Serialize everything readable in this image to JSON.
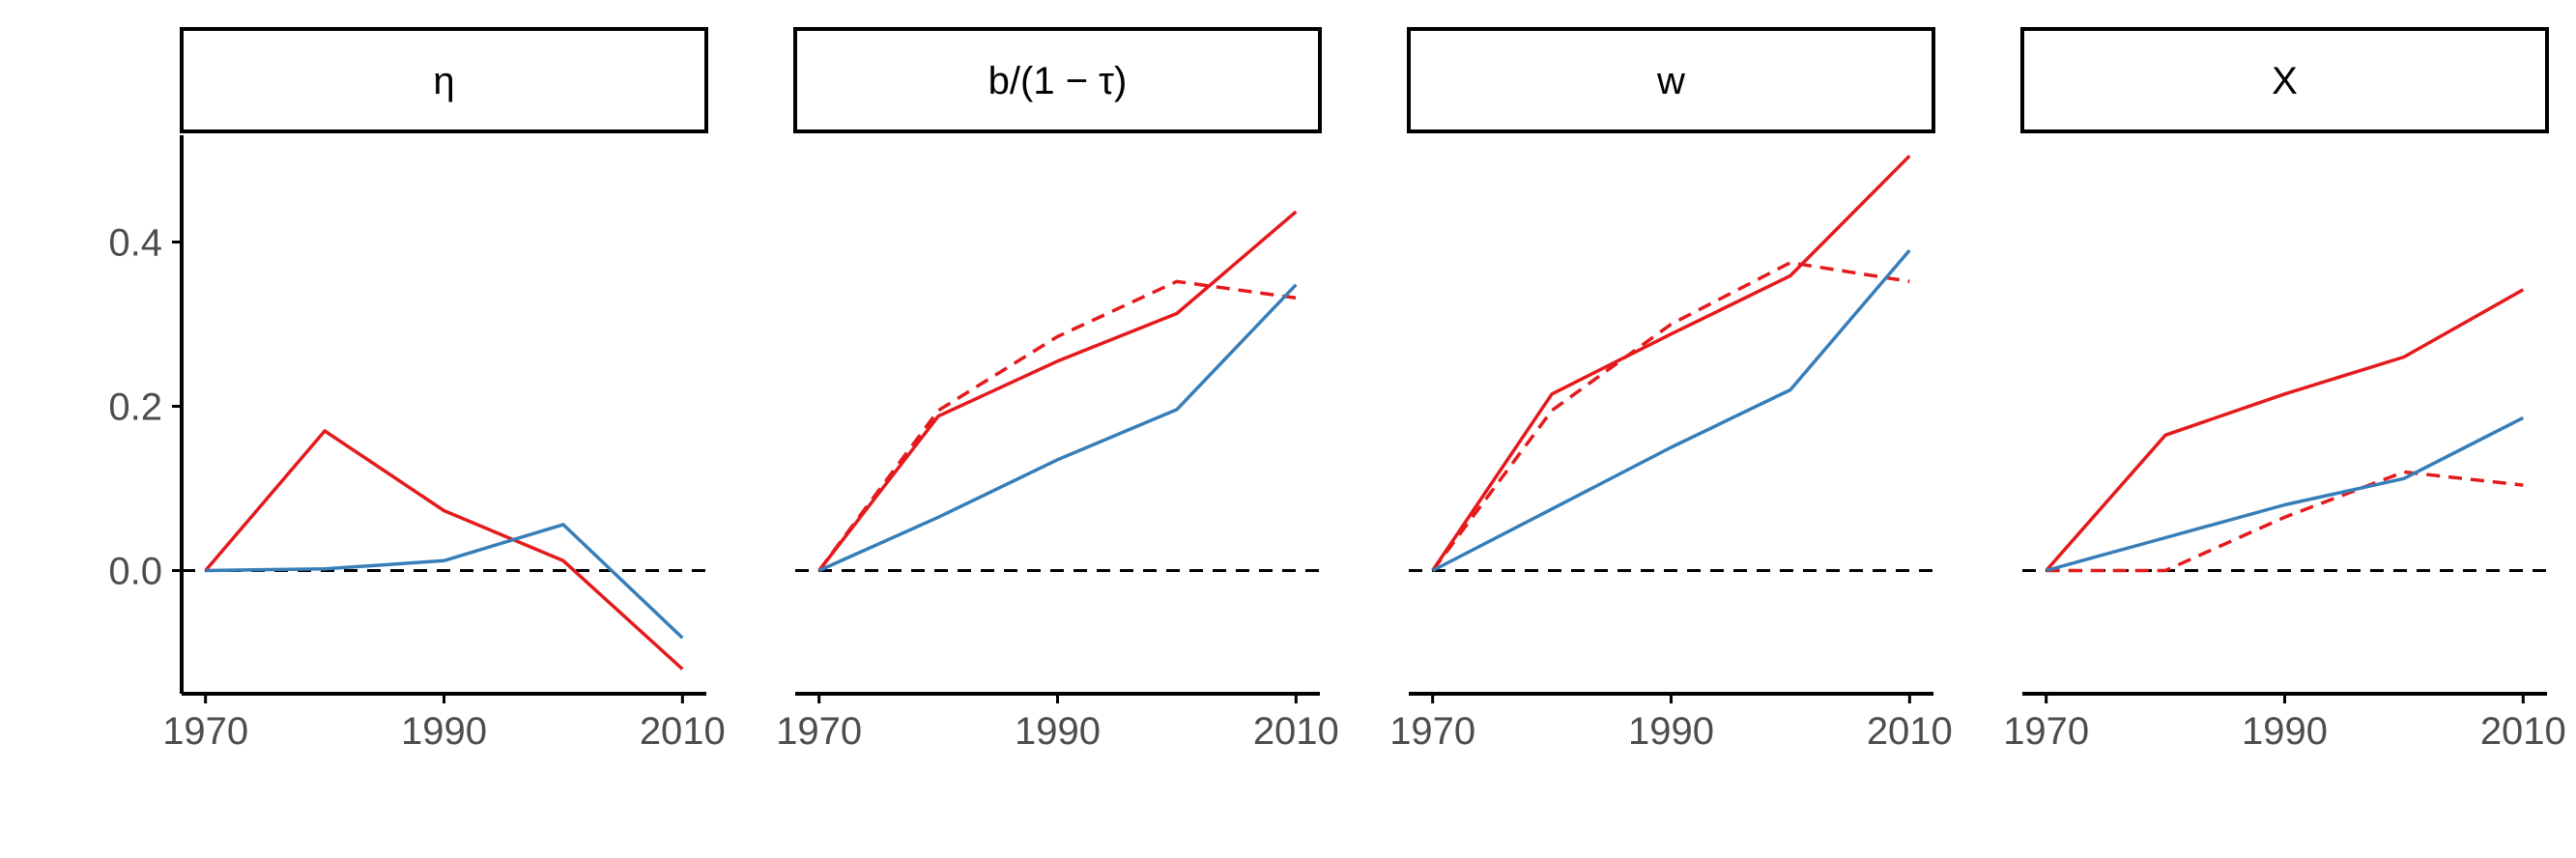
{
  "colors": {
    "red": "#e41a1c",
    "blue": "#377eb8",
    "zero_line": "#000000",
    "axis": "#000000",
    "tick_text": "#4d4d4d"
  },
  "chart_data": {
    "type": "line",
    "layout": "faceted, 4 panels in one row",
    "shared_y_axis": {
      "ylim": [
        -0.15,
        0.53
      ],
      "ticks": [
        0.0,
        0.2,
        0.4
      ],
      "tick_labels": [
        "0.0",
        "0.2",
        "0.4"
      ]
    },
    "x_axis": {
      "xlim": [
        1968,
        2012
      ],
      "ticks": [
        1970,
        1990,
        2010
      ],
      "tick_labels": [
        "1970",
        "1990",
        "2010"
      ]
    },
    "reference_line": {
      "y": 0,
      "style": "dashed"
    },
    "grid": false,
    "legend": "none",
    "panels": [
      {
        "title": "η",
        "series": [
          {
            "color": "red",
            "style": "solid",
            "x": [
              1970,
              1980,
              1990,
              2000,
              2010
            ],
            "y": [
              0.0,
              0.17,
              0.073,
              0.012,
              -0.12
            ]
          },
          {
            "color": "blue",
            "style": "solid",
            "x": [
              1970,
              1980,
              1990,
              2000,
              2010
            ],
            "y": [
              0.0,
              0.002,
              0.012,
              0.056,
              -0.082
            ]
          }
        ]
      },
      {
        "title": "b/(1 − τ)",
        "series": [
          {
            "color": "red",
            "style": "solid",
            "x": [
              1970,
              1980,
              1990,
              2000,
              2010
            ],
            "y": [
              0.0,
              0.188,
              0.255,
              0.313,
              0.437
            ]
          },
          {
            "color": "red",
            "style": "dashed",
            "x": [
              1970,
              1980,
              1990,
              2000,
              2010
            ],
            "y": [
              0.0,
              0.195,
              0.285,
              0.352,
              0.332
            ]
          },
          {
            "color": "blue",
            "style": "solid",
            "x": [
              1970,
              1980,
              1990,
              2000,
              2010
            ],
            "y": [
              0.0,
              0.065,
              0.135,
              0.196,
              0.348
            ]
          }
        ]
      },
      {
        "title": "w",
        "series": [
          {
            "color": "red",
            "style": "solid",
            "x": [
              1970,
              1980,
              1990,
              2000,
              2010
            ],
            "y": [
              0.0,
              0.215,
              0.288,
              0.359,
              0.505
            ]
          },
          {
            "color": "red",
            "style": "dashed",
            "x": [
              1970,
              1980,
              1990,
              2000,
              2010
            ],
            "y": [
              0.0,
              0.195,
              0.3,
              0.375,
              0.352
            ]
          },
          {
            "color": "blue",
            "style": "solid",
            "x": [
              1970,
              1980,
              1990,
              2000,
              2010
            ],
            "y": [
              0.0,
              0.075,
              0.15,
              0.22,
              0.39
            ]
          }
        ]
      },
      {
        "title": "X",
        "series": [
          {
            "color": "red",
            "style": "solid",
            "x": [
              1970,
              1980,
              1990,
              2000,
              2010
            ],
            "y": [
              0.0,
              0.165,
              0.215,
              0.26,
              0.342
            ]
          },
          {
            "color": "red",
            "style": "dashed",
            "x": [
              1970,
              1980,
              1990,
              2000,
              2010
            ],
            "y": [
              0.0,
              0.0,
              0.065,
              0.12,
              0.104
            ]
          },
          {
            "color": "blue",
            "style": "solid",
            "x": [
              1970,
              1980,
              1990,
              2000,
              2010
            ],
            "y": [
              0.0,
              0.04,
              0.08,
              0.112,
              0.186
            ]
          }
        ]
      }
    ]
  }
}
